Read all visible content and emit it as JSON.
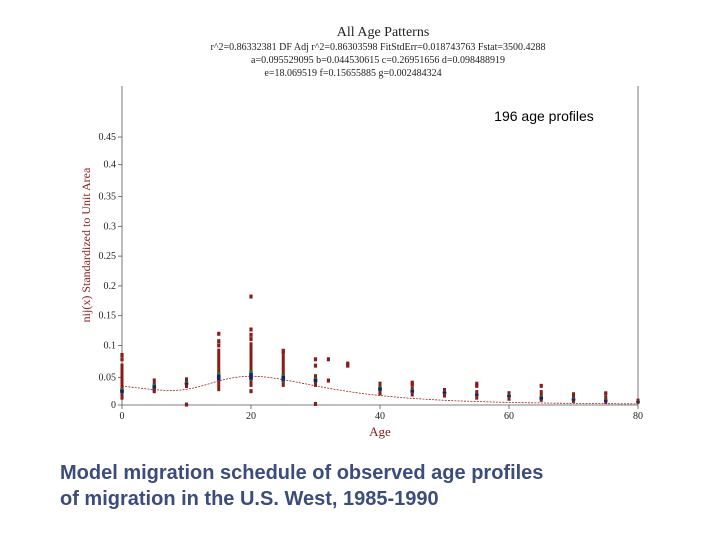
{
  "chart_data": {
    "type": "scatter",
    "title": "All Age Patterns",
    "stats_lines": [
      "r^2=0.86332381  DF Adj r^2=0.86303598  FitStdErr=0.018743763  Fstat=3500.4288",
      "a=0.095529095 b=0.044530615 c=0.26951656 d=0.098488919",
      "e=18.069519 f=0.15655885 g=0.002484324"
    ],
    "annotation": "196 age profiles",
    "xlabel": "Age",
    "ylabel": "nij(x) Standardized to Unit Area",
    "xlim": [
      0,
      80
    ],
    "ylim": [
      0,
      0.15
    ],
    "x_ticks": [
      0,
      20,
      40,
      60,
      80
    ],
    "x_tick_labels": [
      "0",
      "20",
      "40",
      "60",
      "80"
    ],
    "y_ticks": [
      0,
      0.05,
      0.1,
      0.15,
      0.2,
      0.25,
      0.3,
      0.35,
      0.4,
      0.45
    ],
    "y_tick_labels": [
      "0",
      "0.05",
      "0.1",
      "0.15",
      "0.2",
      "0.25",
      "0.3",
      "0.35",
      "0.4",
      "0.45"
    ],
    "y_tick_positions": [
      0,
      0.013,
      0.028,
      0.042,
      0.056,
      0.07,
      0.084,
      0.098,
      0.113,
      0.126
    ],
    "colors": {
      "outer": "#8b1a1a",
      "mid": "#1e7a1e",
      "inner": "#1a1a7a",
      "curve": "#a02020"
    },
    "fit_params": {
      "a": 0.095529095,
      "b": 0.044530615,
      "c": 0.26951656,
      "d": 0.098488919,
      "e": 18.069519,
      "f": 0.15655885,
      "g": 0.002484324
    },
    "age_groups": [
      {
        "x": 0,
        "min": 0.0025,
        "q1": 0.0055,
        "med": 0.0065,
        "q3": 0.008,
        "max": 0.0195,
        "outliers": [
          0.0215,
          0.0235
        ]
      },
      {
        "x": 5,
        "min": 0.0065,
        "q1": 0.0075,
        "med": 0.0085,
        "q3": 0.01,
        "max": 0.0125,
        "outliers": [
          0.0065
        ]
      },
      {
        "x": 10,
        "min": 0.008,
        "q1": 0.0095,
        "med": 0.01,
        "q3": 0.011,
        "max": 0.013,
        "outliers": [
          0.0002
        ]
      },
      {
        "x": 15,
        "min": 0.0065,
        "q1": 0.0115,
        "med": 0.013,
        "q3": 0.0155,
        "max": 0.0265,
        "outliers": [
          0.028,
          0.03,
          0.0335
        ]
      },
      {
        "x": 20,
        "min": 0.0085,
        "q1": 0.0115,
        "med": 0.0135,
        "q3": 0.0165,
        "max": 0.0295,
        "outliers": [
          0.0065,
          0.031,
          0.033,
          0.0355,
          0.051
        ]
      },
      {
        "x": 25,
        "min": 0.0085,
        "q1": 0.0105,
        "med": 0.0125,
        "q3": 0.0145,
        "max": 0.0235,
        "outliers": [
          0.0245,
          0.0255
        ]
      },
      {
        "x": 30,
        "min": 0.0085,
        "q1": 0.0105,
        "med": 0.0115,
        "q3": 0.013,
        "max": 0.0145,
        "outliers": [
          0.0185,
          0.0215,
          0.0005
        ]
      },
      {
        "x": 35,
        "min": null,
        "q1": null,
        "med": null,
        "q3": null,
        "max": null,
        "outliers": [
          0.0185,
          0.0195
        ]
      },
      {
        "x": 40,
        "min": 0.0045,
        "q1": 0.0065,
        "med": 0.0075,
        "q3": 0.009,
        "max": 0.011,
        "outliers": []
      },
      {
        "x": 45,
        "min": 0.004,
        "q1": 0.0055,
        "med": 0.0065,
        "q3": 0.0075,
        "max": 0.0085,
        "outliers": [
          0.0095,
          0.0105
        ]
      },
      {
        "x": 50,
        "min": 0.0035,
        "q1": 0.005,
        "med": 0.0058,
        "q3": 0.0065,
        "max": 0.008,
        "outliers": []
      },
      {
        "x": 55,
        "min": 0.0025,
        "q1": 0.004,
        "med": 0.0048,
        "q3": 0.0055,
        "max": 0.007,
        "outliers": [
          0.009,
          0.01
        ]
      },
      {
        "x": 60,
        "min": 0.002,
        "q1": 0.0035,
        "med": 0.0042,
        "q3": 0.005,
        "max": 0.0065,
        "outliers": []
      },
      {
        "x": 65,
        "min": 0.0015,
        "q1": 0.0025,
        "med": 0.0032,
        "q3": 0.0045,
        "max": 0.007,
        "outliers": [
          0.009
        ]
      },
      {
        "x": 70,
        "min": 0.001,
        "q1": 0.002,
        "med": 0.0025,
        "q3": 0.0035,
        "max": 0.006,
        "outliers": []
      },
      {
        "x": 75,
        "min": 0.0005,
        "q1": 0.0015,
        "med": 0.002,
        "q3": 0.003,
        "max": 0.0045,
        "outliers": [
          0.0055
        ]
      },
      {
        "x": 80,
        "min": 0.0005,
        "q1": 0.001,
        "med": 0.0015,
        "q3": 0.002,
        "max": 0.003,
        "outliers": []
      }
    ],
    "extra_points": [
      {
        "x": 32,
        "y": 0.0215
      },
      {
        "x": 32,
        "y": 0.0115
      }
    ]
  },
  "caption": {
    "line1": "Model migration schedule of observed age profiles",
    "line2": "of migration in the U.S. West, 1985-1990"
  }
}
